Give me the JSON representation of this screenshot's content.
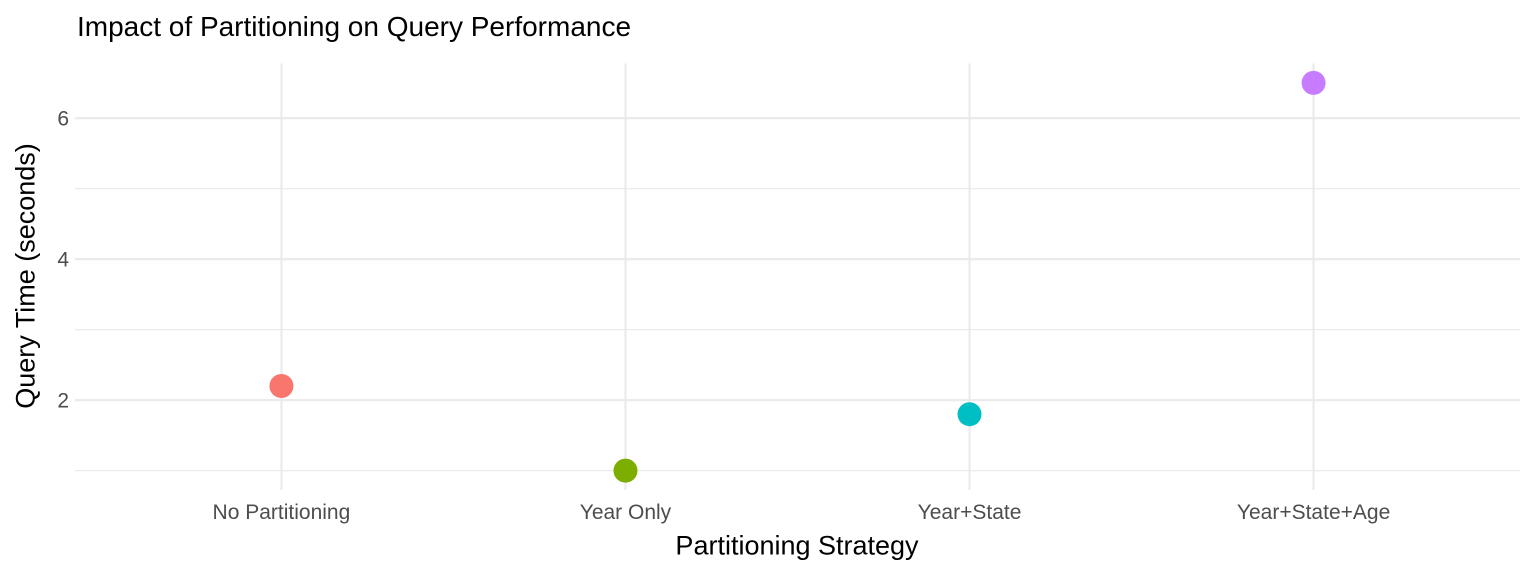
{
  "chart_data": {
    "type": "scatter",
    "title": "Impact of Partitioning on Query Performance",
    "xlabel": "Partitioning Strategy",
    "ylabel": "Query Time (seconds)",
    "categories": [
      "No Partitioning",
      "Year Only",
      "Year+State",
      "Year+State+Age"
    ],
    "values": [
      2.2,
      1.0,
      1.8,
      6.5
    ],
    "point_colors": [
      "#F8766D",
      "#7CAE00",
      "#00BFC4",
      "#C77CFF"
    ],
    "y_major_ticks": [
      2,
      4,
      6
    ],
    "y_minor_ticks": [
      1,
      3,
      5
    ],
    "ylim": [
      0.725,
      6.775
    ],
    "grid": "on",
    "legend": "none",
    "colors": {
      "background": "#FFFFFF",
      "grid": "#EBEBEB",
      "axis_text": "#4D4D4D",
      "title_text": "#000000"
    }
  }
}
